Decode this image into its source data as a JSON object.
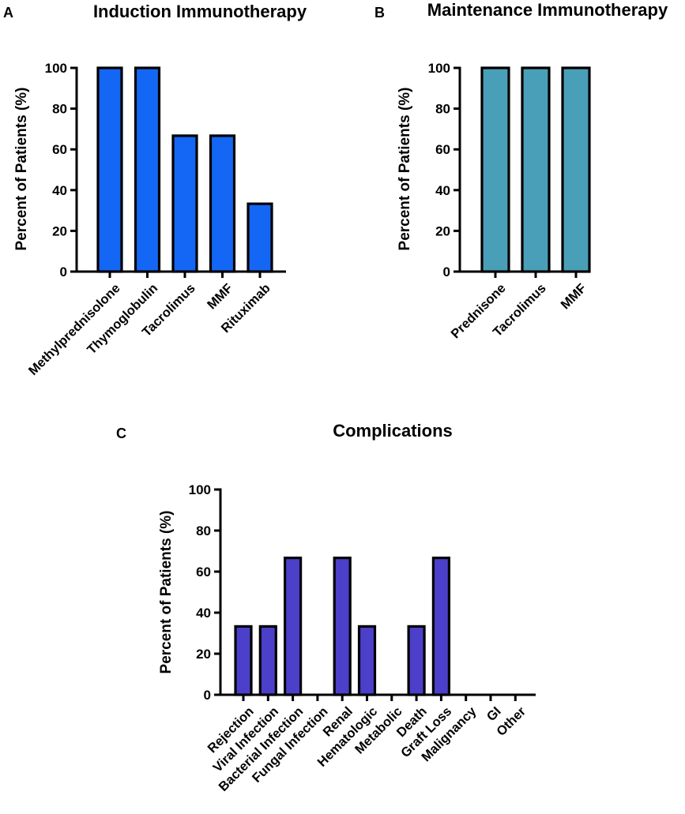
{
  "panel_letters": [
    "A",
    "B",
    "C"
  ],
  "colors": {
    "induction": "#1466f5",
    "maintenance": "#4a9fb8",
    "complications": "#4c3fc9"
  },
  "chart_data": [
    {
      "type": "bar",
      "panel": "A",
      "title": "Induction Immunotherapy",
      "xlabel": "",
      "ylabel": "Percent of Patients (%)",
      "ylim": [
        0,
        100
      ],
      "yticks": [
        0,
        20,
        40,
        60,
        80,
        100
      ],
      "categories": [
        "Methylprednisolone",
        "Thymoglobulin",
        "Tacrolimus",
        "MMF",
        "Rituximab"
      ],
      "values": [
        100,
        100,
        66.7,
        66.7,
        33.3
      ],
      "grid": false
    },
    {
      "type": "bar",
      "panel": "B",
      "title": "Maintenance Immunotherapy",
      "xlabel": "",
      "ylabel": "Percent of Patients (%)",
      "ylim": [
        0,
        100
      ],
      "yticks": [
        0,
        20,
        40,
        60,
        80,
        100
      ],
      "categories": [
        "Prednisone",
        "Tacrolimus",
        "MMF"
      ],
      "values": [
        100,
        100,
        100
      ],
      "grid": false
    },
    {
      "type": "bar",
      "panel": "C",
      "title": "Complications",
      "xlabel": "",
      "ylabel": "Percent of Patients (%)",
      "ylim": [
        0,
        100
      ],
      "yticks": [
        0,
        20,
        40,
        60,
        80,
        100
      ],
      "categories": [
        "Rejection",
        "Viral Infection",
        "Bacterial Infection",
        "Fungal Infection",
        "Renal",
        "Hematologic",
        "Metabolic",
        "Death",
        "Graft Loss",
        "Malignancy",
        "GI",
        "Other"
      ],
      "values": [
        33.3,
        33.3,
        66.7,
        0,
        66.7,
        33.3,
        0,
        33.3,
        66.7,
        0,
        0,
        0
      ],
      "grid": false
    }
  ]
}
